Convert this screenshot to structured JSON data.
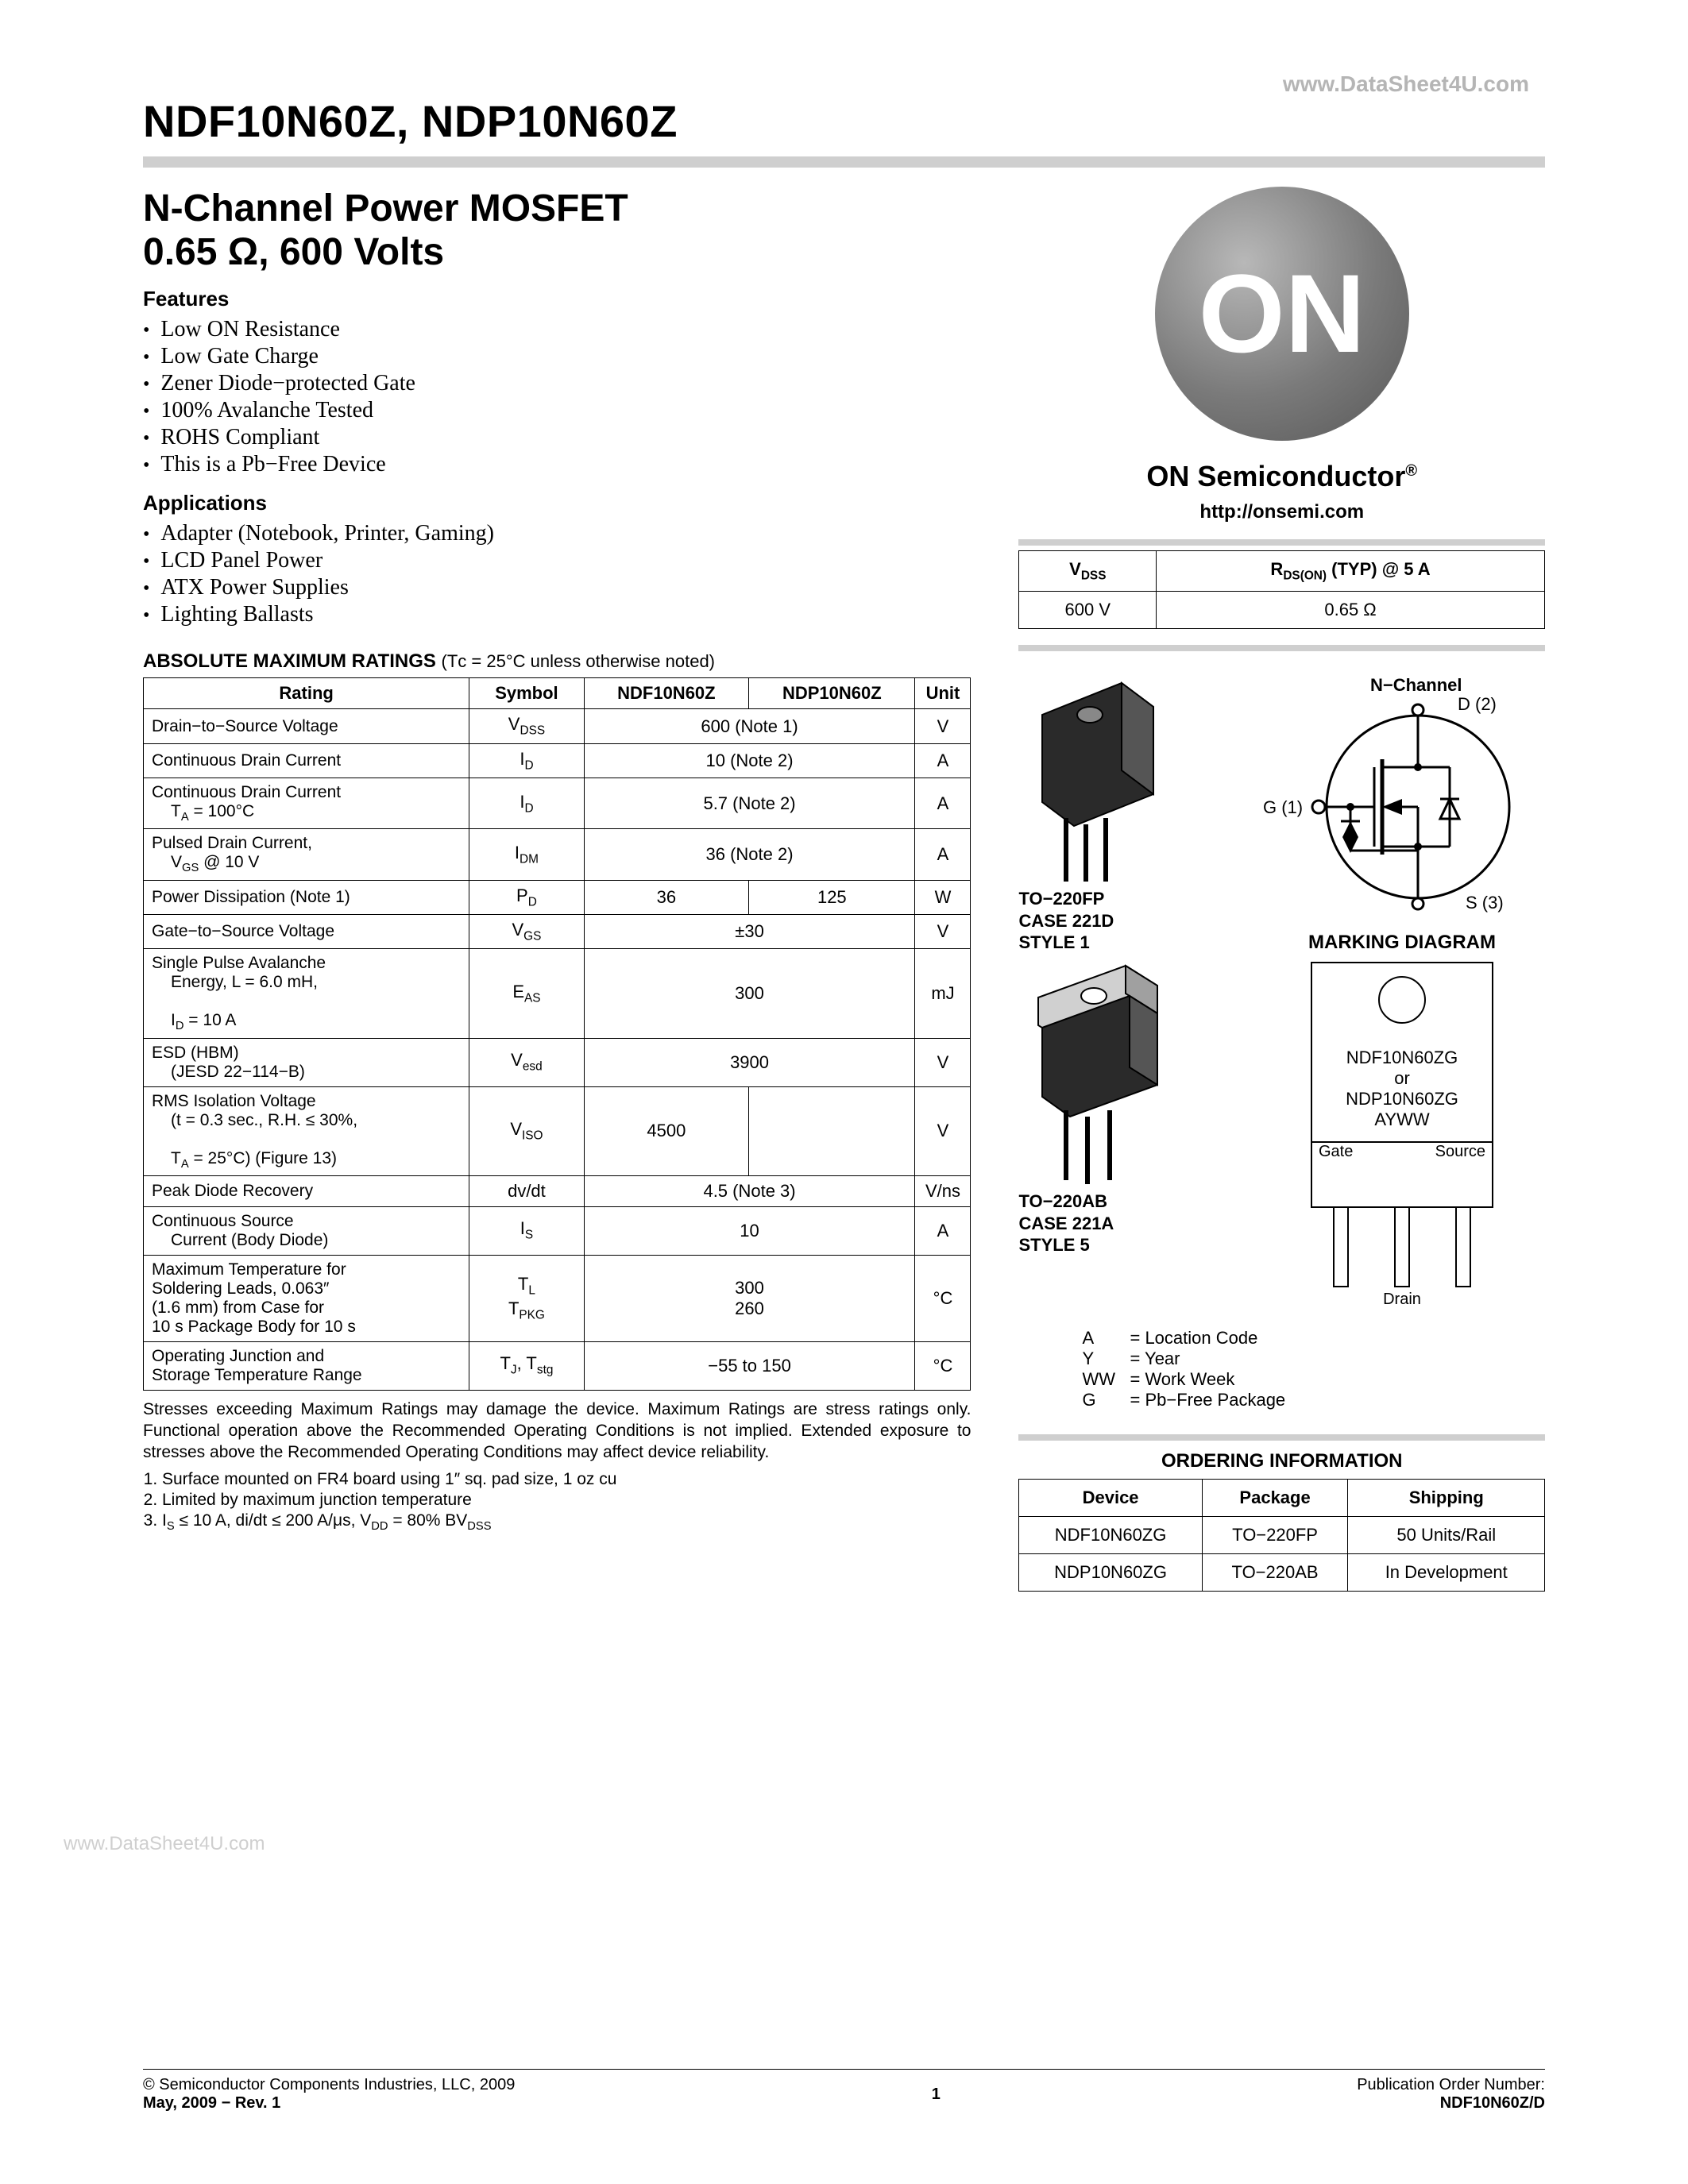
{
  "watermark_top": "www.DataSheet4U.com",
  "watermark_side": "www.DataSheet4U.com",
  "page_title": "NDF10N60Z, NDP10N60Z",
  "sub_title_l1": "N-Channel Power MOSFET",
  "sub_title_l2": "0.65 Ω, 600 Volts",
  "features_heading": "Features",
  "features": [
    "Low ON Resistance",
    "Low Gate Charge",
    "Zener Diode−protected Gate",
    "100% Avalanche Tested",
    "ROHS Compliant",
    "This is a Pb−Free Device"
  ],
  "applications_heading": "Applications",
  "applications": [
    "Adapter (Notebook, Printer, Gaming)",
    "LCD Panel Power",
    "ATX Power Supplies",
    "Lighting Ballasts"
  ],
  "ratings_caption": "ABSOLUTE MAXIMUM RATINGS",
  "ratings_caption_note": "(Tᴄ = 25°C unless otherwise noted)",
  "ratings_headers": [
    "Rating",
    "Symbol",
    "NDF10N60Z",
    "NDP10N60Z",
    "Unit"
  ],
  "ratings_rows": [
    {
      "rating": "Drain−to−Source Voltage",
      "symbol": "V<sub>DSS</sub>",
      "v1": "600 (Note 1)",
      "v2": "",
      "unit": "V",
      "span": true
    },
    {
      "rating": "Continuous Drain Current",
      "symbol": "I<sub>D</sub>",
      "v1": "10 (Note 2)",
      "v2": "",
      "unit": "A",
      "span": true
    },
    {
      "rating": "Continuous Drain Current<br><span class='indent'>T<sub>A</sub> = 100°C</span>",
      "symbol": "I<sub>D</sub>",
      "v1": "5.7 (Note 2)",
      "v2": "",
      "unit": "A",
      "span": true
    },
    {
      "rating": "Pulsed Drain Current,<br><span class='indent'>V<sub>GS</sub> @ 10 V</span>",
      "symbol": "I<sub>DM</sub>",
      "v1": "36 (Note 2)",
      "v2": "",
      "unit": "A",
      "span": true
    },
    {
      "rating": "Power Dissipation (Note 1)",
      "symbol": "P<sub>D</sub>",
      "v1": "36",
      "v2": "125",
      "unit": "W",
      "span": false
    },
    {
      "rating": "Gate−to−Source Voltage",
      "symbol": "V<sub>GS</sub>",
      "v1": "±30",
      "v2": "",
      "unit": "V",
      "span": true
    },
    {
      "rating": "Single Pulse Avalanche<br><span class='indent'>Energy, L = 6.0 mH,</span><br><span class='indent'>I<sub>D</sub> = 10 A</span>",
      "symbol": "E<sub>AS</sub>",
      "v1": "300",
      "v2": "",
      "unit": "mJ",
      "span": true
    },
    {
      "rating": "ESD (HBM)<br><span class='indent'>(JESD 22−114−B)</span>",
      "symbol": "V<sub>esd</sub>",
      "v1": "3900",
      "v2": "",
      "unit": "V",
      "span": true
    },
    {
      "rating": "RMS Isolation Voltage<br><span class='indent'>(t = 0.3 sec., R.H. ≤ 30%,</span><br><span class='indent'>T<sub>A</sub> = 25°C) (Figure 13)</span>",
      "symbol": "V<sub>ISO</sub>",
      "v1": "4500",
      "v2": "",
      "unit": "V",
      "span": false
    },
    {
      "rating": "Peak Diode Recovery",
      "symbol": "dv/dt",
      "v1": "4.5 (Note 3)",
      "v2": "",
      "unit": "V/ns",
      "span": true
    },
    {
      "rating": "Continuous Source<br><span class='indent'>Current (Body Diode)</span>",
      "symbol": "I<sub>S</sub>",
      "v1": "10",
      "v2": "",
      "unit": "A",
      "span": true
    },
    {
      "rating": "Maximum Temperature for<br>Soldering Leads, 0.063″<br>(1.6 mm) from Case for<br>10 s Package Body for 10 s",
      "symbol": "T<sub>L</sub><br>T<sub>PKG</sub>",
      "v1": "300<br>260",
      "v2": "",
      "unit": "°C",
      "span": true
    },
    {
      "rating": "Operating Junction and<br>Storage Temperature Range",
      "symbol": "T<sub>J</sub>, T<sub>stg</sub>",
      "v1": "−55 to 150",
      "v2": "",
      "unit": "°C",
      "span": true
    }
  ],
  "stress_note": "Stresses exceeding Maximum Ratings may damage the device. Maximum Ratings are stress ratings only. Functional operation above the Recommended Operating Conditions is not implied. Extended exposure to stresses above the Recommended Operating Conditions may affect device reliability.",
  "ratings_notes": [
    "Surface mounted on FR4 board using 1″ sq. pad size, 1 oz cu",
    "Limited by maximum junction temperature",
    "I<sub>S</sub> ≤ 10 A, di/dt ≤ 200 A/μs, V<sub>DD</sub> = 80% BV<sub>DSS</sub>"
  ],
  "logo_text": "ON",
  "brand_name": "ON Semiconductor",
  "brand_url": "http://onsemi.com",
  "spec_table": {
    "h1": "V<sub>DSS</sub>",
    "h2": "R<sub>DS(ON)</sub> (TYP) @ 5 A",
    "v1": "600 V",
    "v2": "0.65 Ω"
  },
  "nchannel_label": "N−Channel",
  "pin_d": "D (2)",
  "pin_g": "G (1)",
  "pin_s": "S (3)",
  "pkg1": {
    "l1": "TO−220FP",
    "l2": "CASE 221D",
    "l3": "STYLE 1"
  },
  "pkg2": {
    "l1": "TO−220AB",
    "l2": "CASE 221A",
    "l3": "STYLE 5"
  },
  "marking_title": "MARKING DIAGRAM",
  "marking_text_l1": "NDF10N60ZG",
  "marking_text_l2": "or",
  "marking_text_l3": "NDP10N60ZG",
  "marking_text_l4": "AYWW",
  "marking_gate": "Gate",
  "marking_source": "Source",
  "marking_drain": "Drain",
  "legend": [
    {
      "k": "A",
      "v": "= Location Code"
    },
    {
      "k": "Y",
      "v": "= Year"
    },
    {
      "k": "WW",
      "v": "= Work Week"
    },
    {
      "k": "G",
      "v": "= Pb−Free Package"
    }
  ],
  "ordering_title": "ORDERING INFORMATION",
  "ordering_headers": [
    "Device",
    "Package",
    "Shipping"
  ],
  "ordering_rows": [
    [
      "NDF10N60ZG",
      "TO−220FP",
      "50 Units/Rail"
    ],
    [
      "NDP10N60ZG",
      "TO−220AB",
      "In Development"
    ]
  ],
  "footer": {
    "copyright": "©  Semiconductor Components Industries, LLC, 2009",
    "date": "May, 2009 − Rev. 1",
    "page": "1",
    "pub_label": "Publication Order Number:",
    "pub_num": "NDF10N60Z/D"
  }
}
